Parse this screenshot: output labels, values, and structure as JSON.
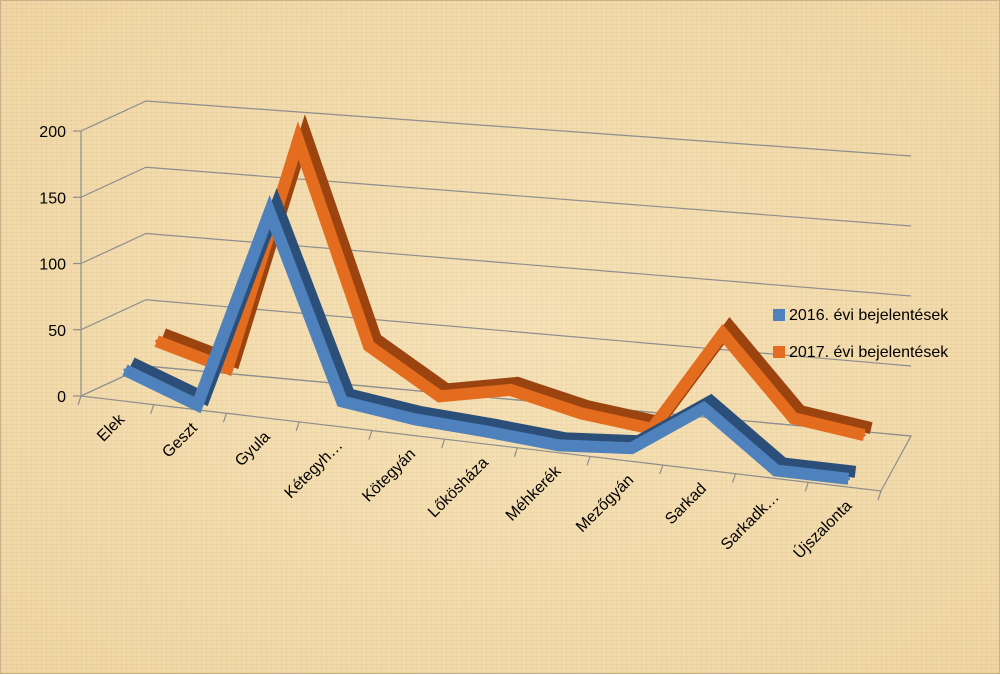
{
  "chart_data": {
    "type": "line",
    "title": "",
    "xlabel": "",
    "ylabel": "",
    "categories": [
      "Elek",
      "Geszt",
      "Gyula",
      "Kétegyh…",
      "Kötegyán",
      "Lőkösháza",
      "Méhkerék",
      "Mezőgyán",
      "Sarkad",
      "Sarkadk…",
      "Újszalonta"
    ],
    "series": [
      {
        "name": "2016. évi bejelentések",
        "values": [
          20,
          0,
          150,
          15,
          8,
          5,
          1,
          5,
          40,
          1,
          1
        ]
      },
      {
        "name": "2017. évi bejelentések",
        "values": [
          30,
          15,
          190,
          42,
          10,
          20,
          8,
          2,
          76,
          20,
          13
        ]
      }
    ],
    "ylim": [
      0,
      200
    ],
    "yticks": [
      0,
      50,
      100,
      150,
      200
    ],
    "grid": true,
    "legend_position": "right",
    "colors": {
      "series_2016": "#4f81bd",
      "series_2017": "#e46c1f"
    }
  }
}
